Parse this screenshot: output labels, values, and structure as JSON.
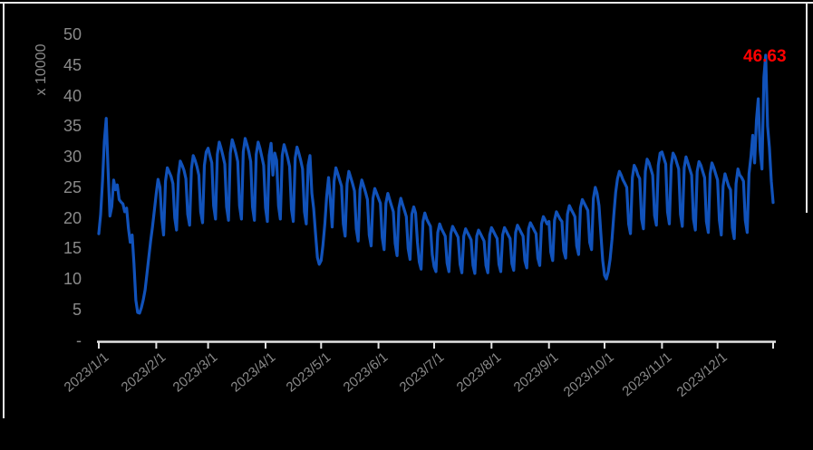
{
  "chart_data": {
    "type": "line",
    "title": "",
    "unit_label": "x 10000",
    "legend": "none",
    "grid": "off",
    "background_color": "#000000",
    "line_color": "#1152BA",
    "axis_text_color": "#8A8A8A",
    "axis_line_color": "#E2E2E2",
    "annotation": {
      "text": "46.63",
      "color": "#FF0000"
    },
    "y_axis": {
      "tick_labels": [
        "50",
        "45",
        "40",
        "35",
        "30",
        "25",
        "20",
        "15",
        "10",
        "5",
        "-"
      ],
      "tick_values": [
        50,
        45,
        40,
        35,
        30,
        25,
        20,
        15,
        10,
        5,
        0
      ],
      "min": 0,
      "max": 50
    },
    "x_axis": {
      "tick_labels": [
        "2023/1/1",
        "2023/2/1",
        "2023/3/1",
        "2023/4/1",
        "2023/5/1",
        "2023/6/1",
        "2023/7/1",
        "2023/8/1",
        "2023/9/1",
        "2023/10/1",
        "2023/11/1",
        "2023/12/1"
      ],
      "tick_day_offsets": [
        0,
        31,
        59,
        90,
        120,
        151,
        181,
        212,
        243,
        273,
        304,
        334
      ],
      "total_days": 365
    },
    "values": [
      17.4,
      20.5,
      26.0,
      32.5,
      36.3,
      28.0,
      20.3,
      21.8,
      26.2,
      24.6,
      25.4,
      23.0,
      22.6,
      22.3,
      21.0,
      21.6,
      18.3,
      16.0,
      17.2,
      12.5,
      6.5,
      4.5,
      4.4,
      5.3,
      6.6,
      8.2,
      10.8,
      13.6,
      16.2,
      18.6,
      21.2,
      24.0,
      26.3,
      25.0,
      20.0,
      17.2,
      26.0,
      28.2,
      27.5,
      26.8,
      25.6,
      20.0,
      18.0,
      27.0,
      29.3,
      28.6,
      27.8,
      26.4,
      20.6,
      18.8,
      28.0,
      30.2,
      29.4,
      28.4,
      27.0,
      21.0,
      19.2,
      28.6,
      30.8,
      31.4,
      30.2,
      29.0,
      22.0,
      19.8,
      30.4,
      32.4,
      31.4,
      30.2,
      28.8,
      21.8,
      19.6,
      30.6,
      32.8,
      31.8,
      30.6,
      29.2,
      22.0,
      19.8,
      30.8,
      33.0,
      32.0,
      30.8,
      29.2,
      21.8,
      19.6,
      30.4,
      32.4,
      31.4,
      30.0,
      28.6,
      21.6,
      19.4,
      30.2,
      32.2,
      27.0,
      30.6,
      29.4,
      22.0,
      19.8,
      30.2,
      32.0,
      31.0,
      29.8,
      28.4,
      21.4,
      19.4,
      29.8,
      31.6,
      30.6,
      29.4,
      28.0,
      21.0,
      19.0,
      28.6,
      30.2,
      24.0,
      21.5,
      17.5,
      13.5,
      12.4,
      13.0,
      15.5,
      19.0,
      23.5,
      26.6,
      23.0,
      18.5,
      26.0,
      28.2,
      27.2,
      26.2,
      25.2,
      19.0,
      17.0,
      25.6,
      27.6,
      26.6,
      25.6,
      24.4,
      18.2,
      16.2,
      24.6,
      26.2,
      25.2,
      24.2,
      23.0,
      17.2,
      15.4,
      23.2,
      24.8,
      24.0,
      23.2,
      22.4,
      16.8,
      14.8,
      22.4,
      24.0,
      23.0,
      22.0,
      21.0,
      15.8,
      13.8,
      21.6,
      23.2,
      22.2,
      21.2,
      20.2,
      15.0,
      13.2,
      20.6,
      21.8,
      20.8,
      16.0,
      12.8,
      11.6,
      19.4,
      20.8,
      19.8,
      19.2,
      18.6,
      14.0,
      12.0,
      11.2,
      17.6,
      19.0,
      18.2,
      17.6,
      17.0,
      12.6,
      11.2,
      17.4,
      18.6,
      18.0,
      17.4,
      16.8,
      12.4,
      11.0,
      17.0,
      18.2,
      17.6,
      17.0,
      16.4,
      12.2,
      10.9,
      17.0,
      18.0,
      17.4,
      16.8,
      16.2,
      12.2,
      11.0,
      17.2,
      18.4,
      17.8,
      17.2,
      16.6,
      12.4,
      11.2,
      17.2,
      18.4,
      17.8,
      17.2,
      16.6,
      12.5,
      11.4,
      17.6,
      18.8,
      18.2,
      17.6,
      17.0,
      13.0,
      11.8,
      18.2,
      19.2,
      18.6,
      18.0,
      17.4,
      13.4,
      12.2,
      19.0,
      20.2,
      19.6,
      19.0,
      19.4,
      14.4,
      13.0,
      19.6,
      21.0,
      20.4,
      19.8,
      19.4,
      14.6,
      13.4,
      20.6,
      22.0,
      21.4,
      20.8,
      20.2,
      15.4,
      14.0,
      21.6,
      23.0,
      22.4,
      21.8,
      21.2,
      16.0,
      14.8,
      23.2,
      25.0,
      24.0,
      22.0,
      17.5,
      13.0,
      10.6,
      10.0,
      11.2,
      13.2,
      16.4,
      20.4,
      24.2,
      26.4,
      27.6,
      27.0,
      26.2,
      25.6,
      25.0,
      19.0,
      17.4,
      26.6,
      28.6,
      28.0,
      27.0,
      26.4,
      19.8,
      18.2,
      27.6,
      29.6,
      29.0,
      28.0,
      27.0,
      20.4,
      18.8,
      28.6,
      30.6,
      30.8,
      29.8,
      28.8,
      21.0,
      19.0,
      28.6,
      30.6,
      30.0,
      29.0,
      28.0,
      20.6,
      18.6,
      28.2,
      30.0,
      29.0,
      28.0,
      27.0,
      19.8,
      18.0,
      27.6,
      29.2,
      28.6,
      27.6,
      26.6,
      19.4,
      17.6,
      27.2,
      29.0,
      28.2,
      27.2,
      26.2,
      19.6,
      17.2,
      25.2,
      27.2,
      26.2,
      25.2,
      24.6,
      18.4,
      16.6,
      25.6,
      28.0,
      27.0,
      26.6,
      26.0,
      19.6,
      17.6,
      27.2,
      30.0,
      33.5,
      29.0,
      36.0,
      39.5,
      31.0,
      28.0,
      43.0,
      46.63,
      35.0,
      31.5,
      26.0,
      22.5
    ]
  }
}
